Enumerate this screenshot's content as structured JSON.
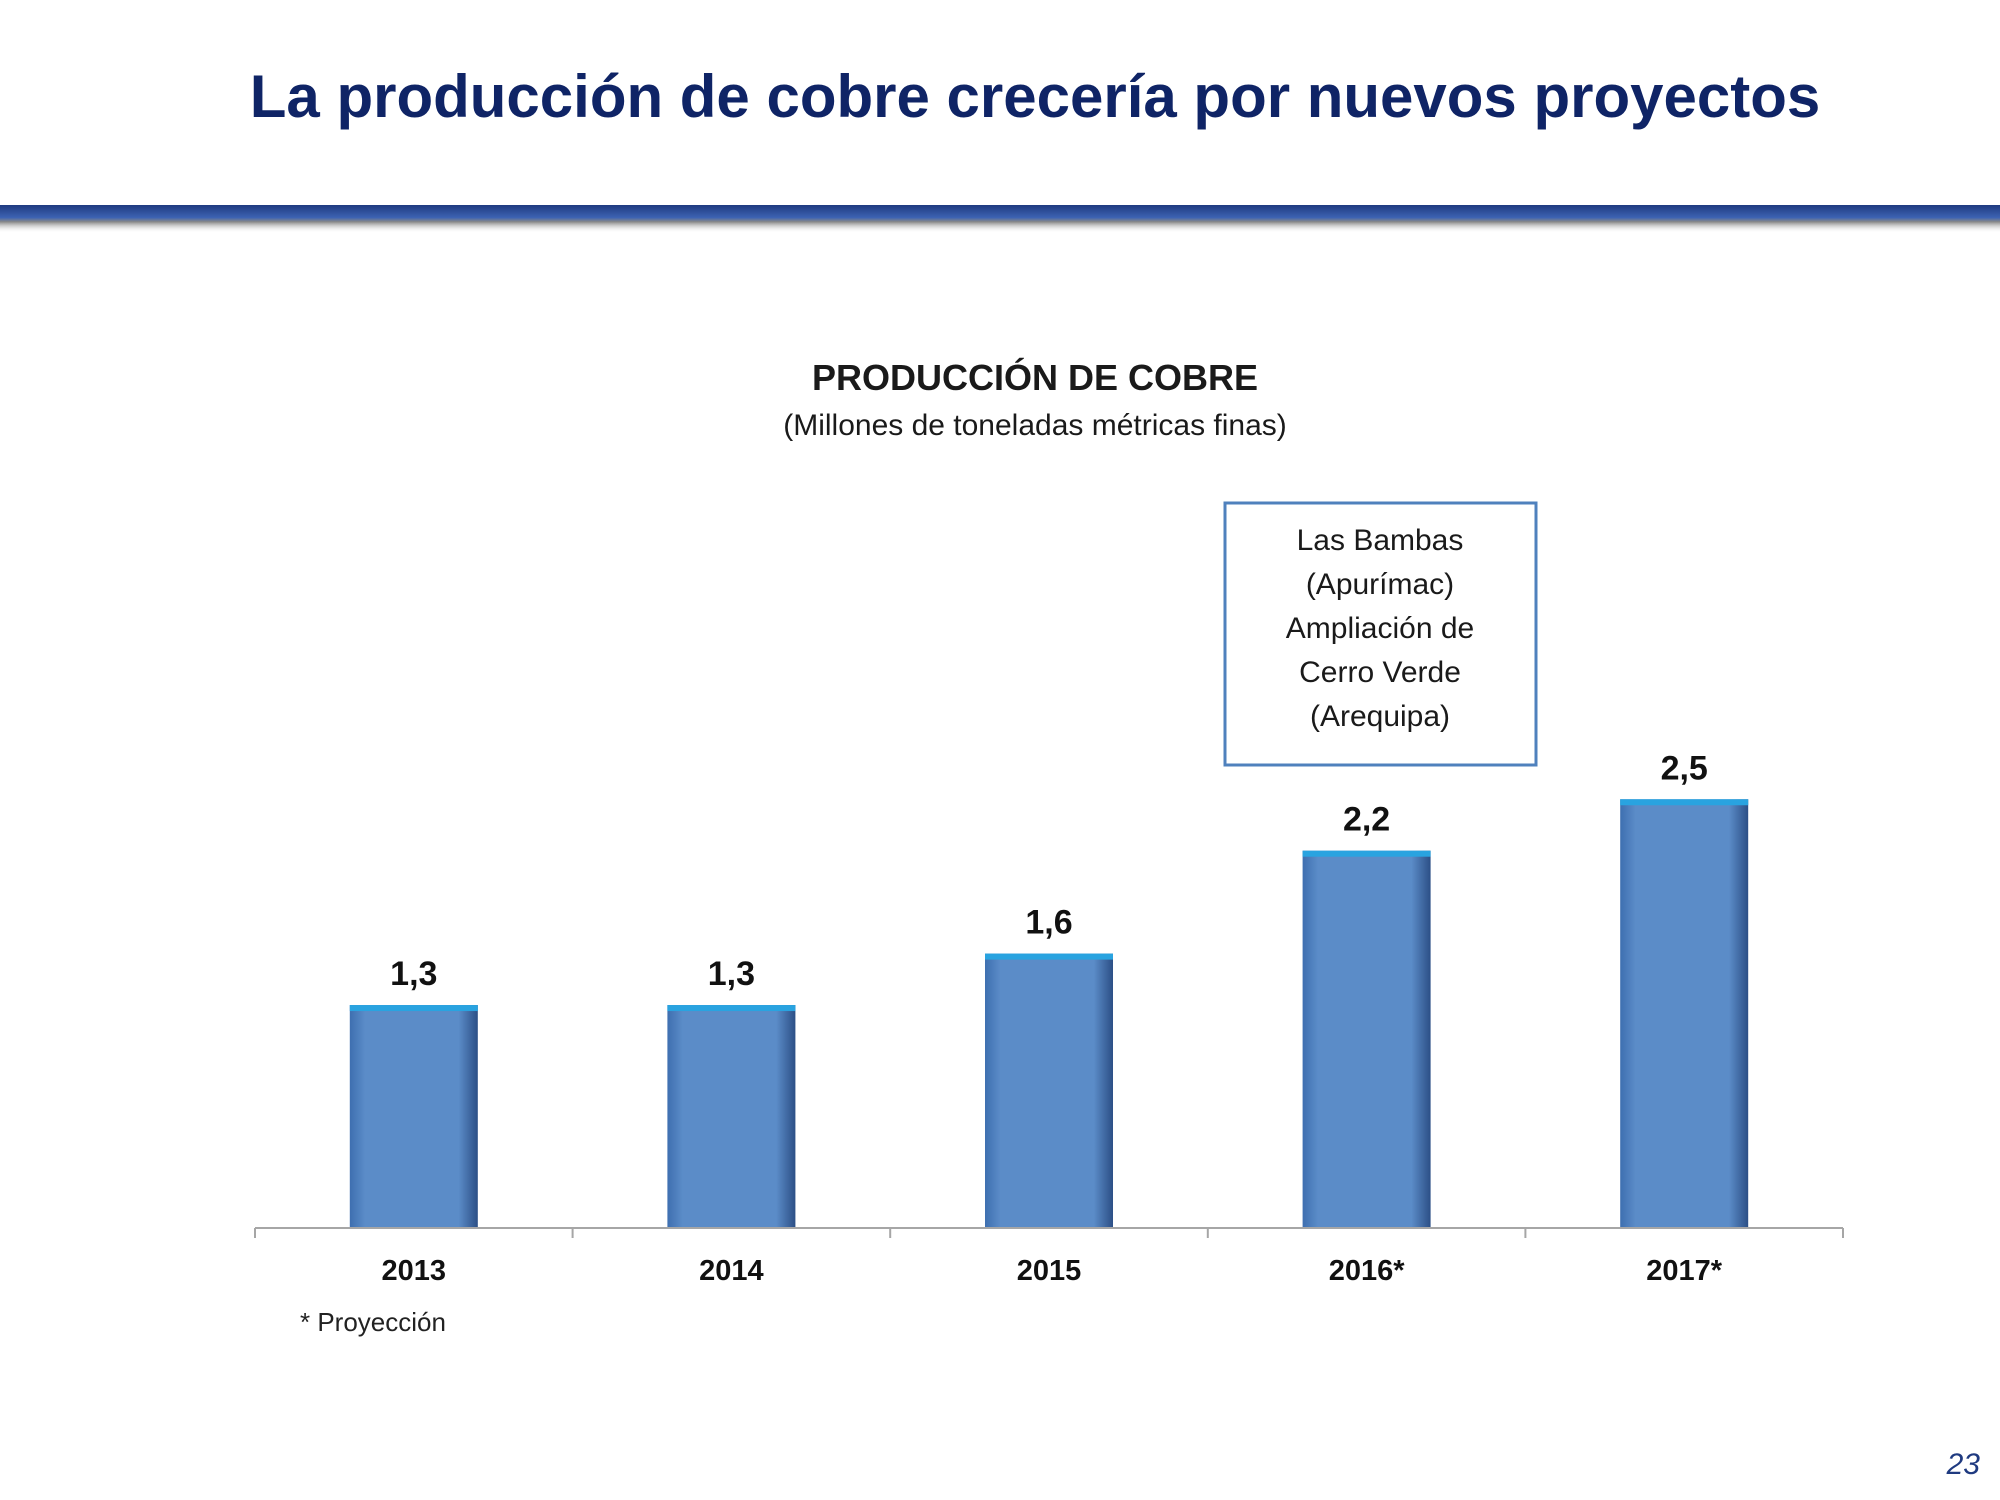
{
  "slide": {
    "title": "La producción de cobre crecería por nuevos proyectos",
    "page_number": "23",
    "accent_color": "#1f3a80"
  },
  "chart_data": {
    "type": "bar",
    "title": "PRODUCCIÓN DE COBRE",
    "subtitle": "(Millones de toneladas métricas finas)",
    "categories": [
      "2013",
      "2014",
      "2015",
      "2016*",
      "2017*"
    ],
    "values": [
      1.3,
      1.3,
      1.6,
      2.2,
      2.5
    ],
    "value_labels": [
      "1,3",
      "1,3",
      "1,6",
      "2,2",
      "2,5"
    ],
    "bar_color": "#5b8cc8",
    "grid": false,
    "footnote": "* Proyección",
    "annotation": {
      "lines": [
        "Las Bambas",
        "(Apurímac)",
        "Ampliación de",
        "Cerro Verde",
        "(Arequipa)"
      ],
      "category": "2016*"
    }
  }
}
